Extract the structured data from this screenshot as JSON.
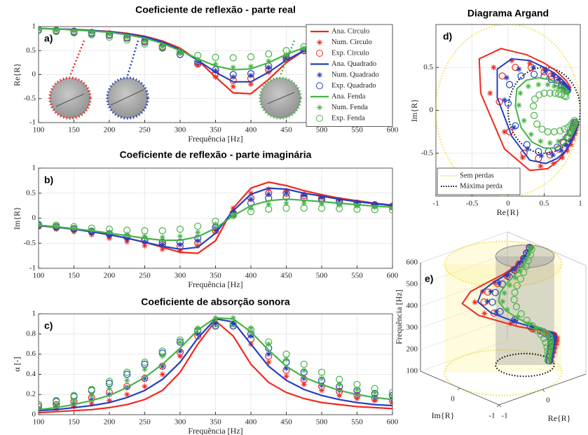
{
  "chart_data": [
    {
      "type": "line",
      "panel_label": "a)",
      "title": "Coeficiente de reflexão - parte real",
      "xlabel": "Frequência [Hz]",
      "ylabel": "Re{R}",
      "x": [
        100,
        125,
        150,
        175,
        200,
        225,
        250,
        275,
        300,
        325,
        350,
        375,
        400,
        425,
        450,
        475,
        500,
        525,
        550,
        575,
        600
      ],
      "xlim": [
        100,
        600
      ],
      "xticks": [
        100,
        150,
        200,
        250,
        300,
        350,
        400,
        450,
        500,
        550,
        600
      ],
      "ylim": [
        -1,
        1
      ],
      "yticks": [
        -1,
        -0.5,
        0,
        0.5,
        1
      ],
      "grid": true,
      "legend": "upper right",
      "series": [
        {
          "name": "Ana. Circulo",
          "color": "#f0281e",
          "marker": "line",
          "values": [
            0.96,
            0.95,
            0.94,
            0.92,
            0.9,
            0.86,
            0.8,
            0.7,
            0.55,
            0.3,
            -0.05,
            -0.38,
            -0.4,
            -0.1,
            0.25,
            0.5,
            0.65,
            0.74,
            0.8,
            0.84,
            0.87
          ]
        },
        {
          "name": "Num. Circulo",
          "color": "#f0281e",
          "marker": "asterisk",
          "values": [
            0.95,
            0.94,
            0.93,
            0.9,
            0.87,
            0.82,
            0.75,
            0.63,
            0.45,
            0.2,
            -0.05,
            -0.25,
            -0.2,
            0.05,
            0.3,
            0.5,
            0.62,
            0.7,
            0.76,
            0.8,
            0.84
          ]
        },
        {
          "name": "Exp. Circulo",
          "color": "#f0281e",
          "marker": "circle",
          "values": [
            0.93,
            0.92,
            0.9,
            0.87,
            0.83,
            0.77,
            0.7,
            0.58,
            0.42,
            0.22,
            0.02,
            -0.12,
            -0.08,
            0.1,
            0.32,
            0.5,
            0.6,
            0.68,
            0.74,
            0.78,
            0.82
          ]
        },
        {
          "name": "Ana. Quadrado",
          "color": "#2340c0",
          "marker": "line",
          "values": [
            0.96,
            0.95,
            0.94,
            0.92,
            0.89,
            0.85,
            0.79,
            0.68,
            0.52,
            0.3,
            0.05,
            -0.15,
            -0.15,
            0.05,
            0.3,
            0.5,
            0.63,
            0.72,
            0.78,
            0.82,
            0.86
          ]
        },
        {
          "name": "Num. Quadrado",
          "color": "#2340c0",
          "marker": "asterisk",
          "values": [
            0.95,
            0.94,
            0.92,
            0.9,
            0.86,
            0.81,
            0.74,
            0.62,
            0.46,
            0.27,
            0.08,
            -0.05,
            -0.02,
            0.15,
            0.35,
            0.52,
            0.63,
            0.7,
            0.76,
            0.8,
            0.84
          ]
        },
        {
          "name": "Exp. Quadrado",
          "color": "#2340c0",
          "marker": "circle",
          "values": [
            0.93,
            0.91,
            0.89,
            0.86,
            0.82,
            0.76,
            0.68,
            0.56,
            0.42,
            0.26,
            0.1,
            0.0,
            0.02,
            0.18,
            0.36,
            0.5,
            0.6,
            0.68,
            0.74,
            0.78,
            0.82
          ]
        },
        {
          "name": "Ana. Fenda",
          "color": "#46b446",
          "marker": "line",
          "values": [
            0.96,
            0.95,
            0.93,
            0.91,
            0.88,
            0.83,
            0.76,
            0.65,
            0.5,
            0.33,
            0.18,
            0.1,
            0.12,
            0.25,
            0.42,
            0.56,
            0.66,
            0.73,
            0.78,
            0.82,
            0.85
          ]
        },
        {
          "name": "Num. Fenda",
          "color": "#46b446",
          "marker": "asterisk",
          "values": [
            0.94,
            0.93,
            0.91,
            0.88,
            0.84,
            0.78,
            0.7,
            0.58,
            0.45,
            0.32,
            0.22,
            0.15,
            0.17,
            0.28,
            0.42,
            0.55,
            0.64,
            0.7,
            0.75,
            0.79,
            0.82
          ]
        },
        {
          "name": "Exp. Fenda",
          "color": "#46b446",
          "marker": "circle",
          "values": [
            0.92,
            0.9,
            0.87,
            0.83,
            0.78,
            0.72,
            0.64,
            0.55,
            0.47,
            0.4,
            0.36,
            0.35,
            0.37,
            0.43,
            0.5,
            0.58,
            0.65,
            0.7,
            0.74,
            0.78,
            0.8
          ]
        }
      ]
    },
    {
      "type": "line",
      "panel_label": "b)",
      "title": "Coeficiente de reflexão - parte imaginária",
      "xlabel": "Frequência [Hz]",
      "ylabel": "Im{R}",
      "x": [
        100,
        125,
        150,
        175,
        200,
        225,
        250,
        275,
        300,
        325,
        350,
        375,
        400,
        425,
        450,
        475,
        500,
        525,
        550,
        575,
        600
      ],
      "xlim": [
        100,
        600
      ],
      "xticks": [
        100,
        150,
        200,
        250,
        300,
        350,
        400,
        450,
        500,
        550,
        600
      ],
      "ylim": [
        -1,
        1
      ],
      "yticks": [
        -1,
        -0.5,
        0,
        0.5,
        1
      ],
      "grid": true,
      "series": [
        {
          "color": "#f0281e",
          "marker": "line",
          "values": [
            -0.15,
            -0.18,
            -0.22,
            -0.27,
            -0.33,
            -0.4,
            -0.48,
            -0.58,
            -0.68,
            -0.7,
            -0.45,
            0.2,
            0.6,
            0.72,
            0.65,
            0.55,
            0.47,
            0.4,
            0.35,
            0.3,
            0.26
          ]
        },
        {
          "color": "#f0281e",
          "marker": "asterisk",
          "values": [
            -0.18,
            -0.22,
            -0.27,
            -0.33,
            -0.4,
            -0.47,
            -0.55,
            -0.62,
            -0.65,
            -0.55,
            -0.25,
            0.2,
            0.5,
            0.58,
            0.55,
            0.48,
            0.42,
            0.36,
            0.31,
            0.27,
            0.24
          ]
        },
        {
          "color": "#f0281e",
          "marker": "circle",
          "values": [
            -0.15,
            -0.18,
            -0.22,
            -0.27,
            -0.32,
            -0.38,
            -0.45,
            -0.52,
            -0.56,
            -0.5,
            -0.25,
            0.1,
            0.4,
            0.5,
            0.5,
            0.45,
            0.4,
            0.35,
            0.3,
            0.27,
            0.24
          ]
        },
        {
          "color": "#2340c0",
          "marker": "line",
          "values": [
            -0.15,
            -0.18,
            -0.22,
            -0.27,
            -0.33,
            -0.4,
            -0.48,
            -0.56,
            -0.62,
            -0.58,
            -0.3,
            0.15,
            0.48,
            0.6,
            0.58,
            0.5,
            0.44,
            0.38,
            0.33,
            0.29,
            0.25
          ]
        },
        {
          "color": "#2340c0",
          "marker": "asterisk",
          "values": [
            -0.16,
            -0.2,
            -0.24,
            -0.29,
            -0.35,
            -0.41,
            -0.47,
            -0.52,
            -0.53,
            -0.45,
            -0.2,
            0.12,
            0.38,
            0.48,
            0.5,
            0.46,
            0.41,
            0.36,
            0.31,
            0.27,
            0.24
          ]
        },
        {
          "color": "#2340c0",
          "marker": "circle",
          "values": [
            -0.14,
            -0.17,
            -0.21,
            -0.26,
            -0.31,
            -0.37,
            -0.43,
            -0.48,
            -0.48,
            -0.4,
            -0.18,
            0.08,
            0.3,
            0.4,
            0.42,
            0.4,
            0.36,
            0.32,
            0.29,
            0.26,
            0.23
          ]
        },
        {
          "color": "#46b446",
          "marker": "line",
          "values": [
            -0.14,
            -0.17,
            -0.21,
            -0.25,
            -0.3,
            -0.35,
            -0.4,
            -0.44,
            -0.44,
            -0.37,
            -0.2,
            0.05,
            0.25,
            0.35,
            0.38,
            0.36,
            0.33,
            0.3,
            0.27,
            0.24,
            0.22
          ]
        },
        {
          "color": "#46b446",
          "marker": "asterisk",
          "values": [
            -0.13,
            -0.16,
            -0.2,
            -0.24,
            -0.28,
            -0.32,
            -0.36,
            -0.38,
            -0.36,
            -0.28,
            -0.12,
            0.06,
            0.2,
            0.28,
            0.3,
            0.3,
            0.28,
            0.26,
            0.24,
            0.22,
            0.2
          ]
        },
        {
          "color": "#46b446",
          "marker": "circle",
          "values": [
            -0.12,
            -0.14,
            -0.17,
            -0.2,
            -0.22,
            -0.24,
            -0.25,
            -0.25,
            -0.22,
            -0.16,
            -0.06,
            0.05,
            0.13,
            0.18,
            0.2,
            0.2,
            0.2,
            0.19,
            0.18,
            0.17,
            0.16
          ]
        }
      ]
    },
    {
      "type": "line",
      "panel_label": "c)",
      "title": "Coeficiente de absorção sonora",
      "xlabel": "Frequência [Hz]",
      "ylabel": "α [-]",
      "x": [
        100,
        125,
        150,
        175,
        200,
        225,
        250,
        275,
        300,
        325,
        350,
        375,
        400,
        425,
        450,
        475,
        500,
        525,
        550,
        575,
        600
      ],
      "xlim": [
        100,
        600
      ],
      "xticks": [
        100,
        150,
        200,
        250,
        300,
        350,
        400,
        450,
        500,
        550,
        600
      ],
      "ylim": [
        0,
        1
      ],
      "yticks": [
        0,
        0.2,
        0.4,
        0.6,
        0.8,
        1
      ],
      "grid": true,
      "series": [
        {
          "color": "#f0281e",
          "marker": "line",
          "values": [
            0.02,
            0.03,
            0.04,
            0.05,
            0.07,
            0.1,
            0.15,
            0.24,
            0.42,
            0.7,
            0.93,
            0.78,
            0.5,
            0.32,
            0.22,
            0.16,
            0.12,
            0.1,
            0.08,
            0.07,
            0.06
          ]
        },
        {
          "color": "#f0281e",
          "marker": "asterisk",
          "values": [
            0.05,
            0.06,
            0.08,
            0.11,
            0.14,
            0.2,
            0.28,
            0.4,
            0.58,
            0.8,
            0.92,
            0.9,
            0.7,
            0.52,
            0.38,
            0.3,
            0.24,
            0.19,
            0.16,
            0.14,
            0.12
          ]
        },
        {
          "color": "#f0281e",
          "marker": "circle",
          "values": [
            0.08,
            0.1,
            0.13,
            0.17,
            0.22,
            0.28,
            0.36,
            0.48,
            0.62,
            0.78,
            0.88,
            0.88,
            0.75,
            0.58,
            0.44,
            0.35,
            0.28,
            0.23,
            0.19,
            0.16,
            0.14
          ]
        },
        {
          "color": "#2340c0",
          "marker": "line",
          "values": [
            0.04,
            0.05,
            0.07,
            0.09,
            0.12,
            0.17,
            0.24,
            0.35,
            0.52,
            0.76,
            0.95,
            0.92,
            0.7,
            0.48,
            0.34,
            0.25,
            0.19,
            0.15,
            0.12,
            0.1,
            0.09
          ]
        },
        {
          "color": "#2340c0",
          "marker": "asterisk",
          "values": [
            0.06,
            0.08,
            0.11,
            0.15,
            0.2,
            0.27,
            0.36,
            0.48,
            0.63,
            0.8,
            0.9,
            0.9,
            0.78,
            0.6,
            0.46,
            0.36,
            0.29,
            0.24,
            0.2,
            0.17,
            0.15
          ]
        },
        {
          "color": "#2340c0",
          "marker": "circle",
          "values": [
            0.1,
            0.13,
            0.18,
            0.24,
            0.31,
            0.4,
            0.5,
            0.61,
            0.72,
            0.83,
            0.88,
            0.88,
            0.8,
            0.66,
            0.52,
            0.42,
            0.34,
            0.28,
            0.24,
            0.21,
            0.19
          ]
        },
        {
          "color": "#46b446",
          "marker": "line",
          "values": [
            0.05,
            0.07,
            0.1,
            0.14,
            0.19,
            0.27,
            0.37,
            0.5,
            0.66,
            0.84,
            0.96,
            0.95,
            0.82,
            0.64,
            0.48,
            0.37,
            0.3,
            0.24,
            0.2,
            0.17,
            0.15
          ]
        },
        {
          "color": "#46b446",
          "marker": "asterisk",
          "values": [
            0.07,
            0.1,
            0.14,
            0.19,
            0.26,
            0.34,
            0.45,
            0.58,
            0.72,
            0.86,
            0.96,
            0.96,
            0.86,
            0.7,
            0.55,
            0.44,
            0.36,
            0.3,
            0.25,
            0.22,
            0.19
          ]
        },
        {
          "color": "#46b446",
          "marker": "circle",
          "values": [
            0.1,
            0.14,
            0.19,
            0.25,
            0.33,
            0.42,
            0.52,
            0.63,
            0.74,
            0.84,
            0.9,
            0.9,
            0.84,
            0.72,
            0.6,
            0.5,
            0.42,
            0.35,
            0.3,
            0.26,
            0.22
          ]
        }
      ]
    },
    {
      "type": "argand",
      "panel_label": "d)",
      "title": "Diagrama Argand",
      "xlabel": "Re{R}",
      "ylabel": "Im{R}",
      "xlim": [
        -1,
        1
      ],
      "xticks": [
        -1,
        -0.5,
        0,
        0.5,
        1
      ],
      "ylim": [
        -1,
        1
      ],
      "yticks": [
        -0.5,
        0,
        0.5
      ],
      "grid": true,
      "legend": "lower left",
      "series": [
        {
          "name": "Sem perdas",
          "color": "#f2e03a",
          "style": "dotted",
          "center": [
            0,
            0
          ],
          "radius": 1
        },
        {
          "name": "Máxima perda",
          "color": "#000000",
          "style": "dotted",
          "center": [
            0.5,
            0
          ],
          "radius": 0.5
        }
      ]
    },
    {
      "type": "cylinder3d",
      "panel_label": "e)",
      "xlabel": "Re{R}",
      "ylabel": "Im{R}",
      "zlabel": "Frequência [Hz]",
      "xlim": [
        -1,
        1
      ],
      "ylim": [
        -1,
        1
      ],
      "xticks": [
        -1,
        0
      ],
      "yticks": [
        -1,
        0
      ],
      "zlim": [
        100,
        600
      ],
      "zticks": [
        100,
        200,
        300,
        400,
        500,
        600
      ]
    }
  ]
}
